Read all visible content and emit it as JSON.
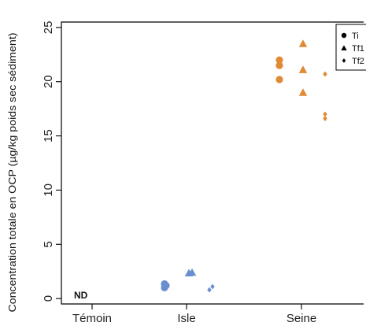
{
  "chart_data": {
    "type": "scatter",
    "ylabel": "Concentration totale en OCP (µg/kg poids sec sédiment)",
    "xlabel": "",
    "categories": [
      "Témoin",
      "Isle",
      "Seine"
    ],
    "ylim": [
      -0.5,
      25.5
    ],
    "yticks": [
      0,
      5,
      10,
      15,
      20,
      25
    ],
    "grid": false,
    "legend_position": "top-right",
    "colors": {
      "Isle": "#6a8fd0",
      "Seine": "#e08a35",
      "axis": "#000000"
    },
    "series": [
      {
        "name": "Ti",
        "marker": "circle",
        "points": [
          {
            "category": "Isle",
            "y": 1.0
          },
          {
            "category": "Isle",
            "y": 1.2
          },
          {
            "category": "Isle",
            "y": 1.35
          },
          {
            "category": "Seine",
            "y": 20.2
          },
          {
            "category": "Seine",
            "y": 21.5
          },
          {
            "category": "Seine",
            "y": 22.0
          }
        ]
      },
      {
        "name": "Tf1",
        "marker": "triangle",
        "points": [
          {
            "category": "Isle",
            "y": 2.35
          },
          {
            "category": "Isle",
            "y": 2.4
          },
          {
            "category": "Seine",
            "y": 19.0
          },
          {
            "category": "Seine",
            "y": 21.1
          },
          {
            "category": "Seine",
            "y": 23.5
          }
        ]
      },
      {
        "name": "Tf2",
        "marker": "diamond",
        "points": [
          {
            "category": "Isle",
            "y": 0.8
          },
          {
            "category": "Isle",
            "y": 1.1
          },
          {
            "category": "Seine",
            "y": 16.6
          },
          {
            "category": "Seine",
            "y": 17.0
          },
          {
            "category": "Seine",
            "y": 20.7
          }
        ]
      }
    ],
    "annotations": [
      {
        "category": "Témoin",
        "y": 0.3,
        "text": "ND"
      }
    ]
  }
}
